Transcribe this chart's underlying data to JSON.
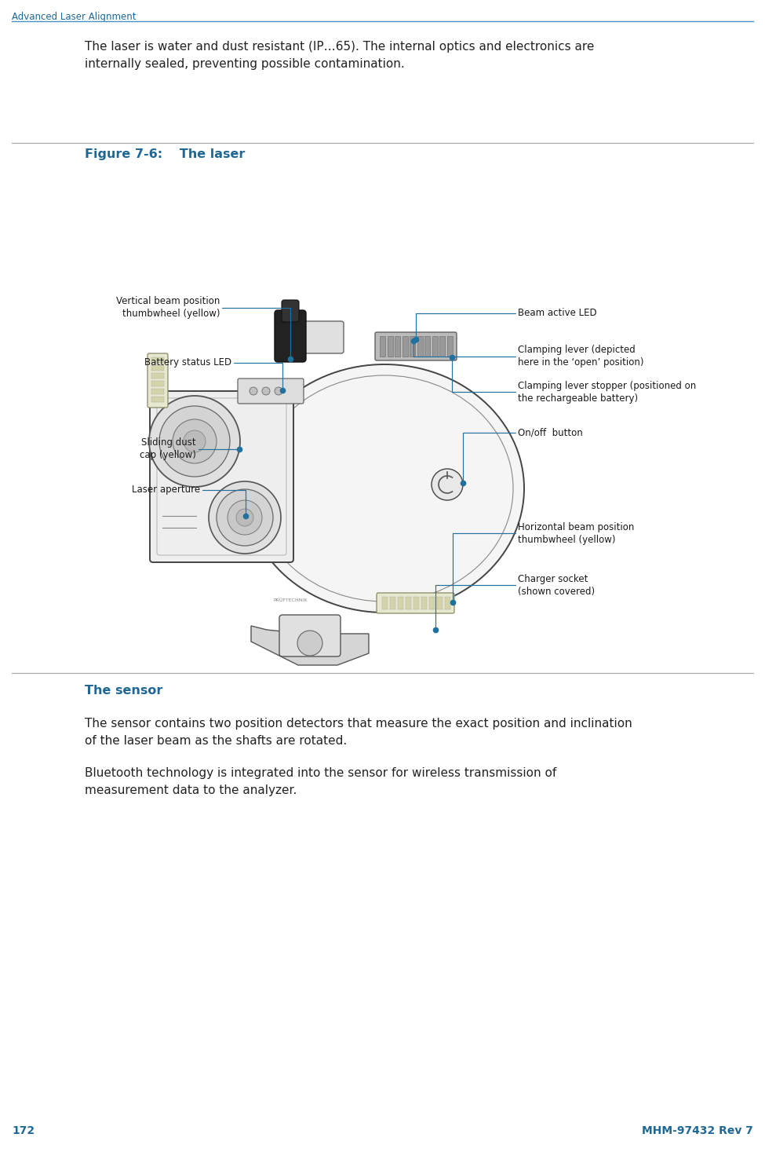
{
  "bg_color": "#ffffff",
  "header_text": "Advanced Laser Alignment",
  "header_color": "#1f6896",
  "header_line_color": "#4a90c4",
  "page_num": "172",
  "page_ref": "MHM-97432 Rev 7",
  "footer_color": "#1f6896",
  "intro_text": "The laser is water and dust resistant (IP…65). The internal optics and electronics are\ninternally sealed, preventing possible contamination.",
  "figure_title": "Figure 7-6:  The laser",
  "figure_title_color": "#1f6896",
  "section_title": "The sensor",
  "section_title_color": "#1f6896",
  "para1": "The sensor contains two position detectors that measure the exact position and inclination\nof the laser beam as the shafts are rotated.",
  "para2": "Bluetooth technology is integrated into the sensor for wireless transmission of\nmeasurement data to the analyzer.",
  "line_color": "#2070a0",
  "dot_color": "#2070a0",
  "text_color": "#222222",
  "label_fontsize": 8.5,
  "body_fontsize": 11.0,
  "header_fontsize": 8.5,
  "title_fontsize": 11.5,
  "section_fontsize": 11.5,
  "footer_fontsize": 10.0
}
